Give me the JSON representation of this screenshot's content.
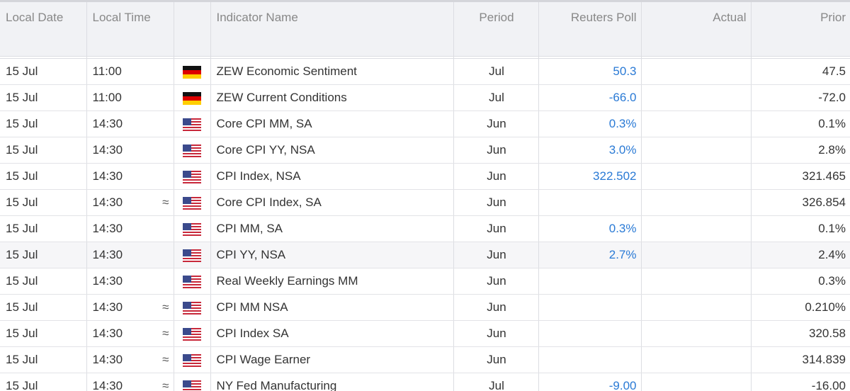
{
  "header": {
    "columns": [
      "Local Date",
      "Local Time",
      "Indicator Name",
      "Period",
      "Reuters Poll",
      "Actual",
      "Prior"
    ]
  },
  "rows": [
    {
      "date": "15 Jul",
      "time": "11:00",
      "indicator": "ZEW Economic Sentiment",
      "period": "Jul",
      "poll": "50.3",
      "prior": "47.5"
    },
    {
      "date": "15 Jul",
      "time": "11:00",
      "indicator": "ZEW Current Conditions",
      "period": "Jul",
      "poll": "-66.0",
      "prior": "-72.0"
    },
    {
      "date": "15 Jul",
      "time": "14:30",
      "indicator": "Core CPI MM, SA",
      "period": "Jun",
      "poll": "0.3%",
      "prior": "0.1%"
    },
    {
      "date": "15 Jul",
      "time": "14:30",
      "indicator": "Core CPI YY, NSA",
      "period": "Jun",
      "poll": "3.0%",
      "prior": "2.8%"
    },
    {
      "date": "15 Jul",
      "time": "14:30",
      "indicator": "CPI Index, NSA",
      "period": "Jun",
      "poll": "322.502",
      "prior": "321.465"
    },
    {
      "date": "15 Jul",
      "time": "14:30",
      "marker": "≈",
      "indicator": "Core CPI Index, SA",
      "period": "Jun",
      "prior": "326.854"
    },
    {
      "date": "15 Jul",
      "time": "14:30",
      "indicator": "CPI MM, SA",
      "period": "Jun",
      "poll": "0.3%",
      "prior": "0.1%"
    },
    {
      "date": "15 Jul",
      "time": "14:30",
      "indicator": "CPI YY, NSA",
      "period": "Jun",
      "poll": "2.7%",
      "prior": "2.4%"
    },
    {
      "date": "15 Jul",
      "time": "14:30",
      "indicator": "Real Weekly Earnings MM",
      "period": "Jun",
      "prior": "0.3%"
    },
    {
      "date": "15 Jul",
      "time": "14:30",
      "marker": "≈",
      "indicator": "CPI MM NSA",
      "period": "Jun",
      "prior": "0.210%"
    },
    {
      "date": "15 Jul",
      "time": "14:30",
      "marker": "≈",
      "indicator": "CPI Index SA",
      "period": "Jun",
      "prior": "320.58"
    },
    {
      "date": "15 Jul",
      "time": "14:30",
      "marker": "≈",
      "indicator": "CPI Wage Earner",
      "period": "Jun",
      "prior": "314.839"
    },
    {
      "date": "15 Jul",
      "time": "14:30",
      "marker": "≈",
      "indicator": "NY Fed Manufacturing",
      "period": "Jul",
      "poll": "-9.00",
      "prior": "-16.00"
    }
  ]
}
